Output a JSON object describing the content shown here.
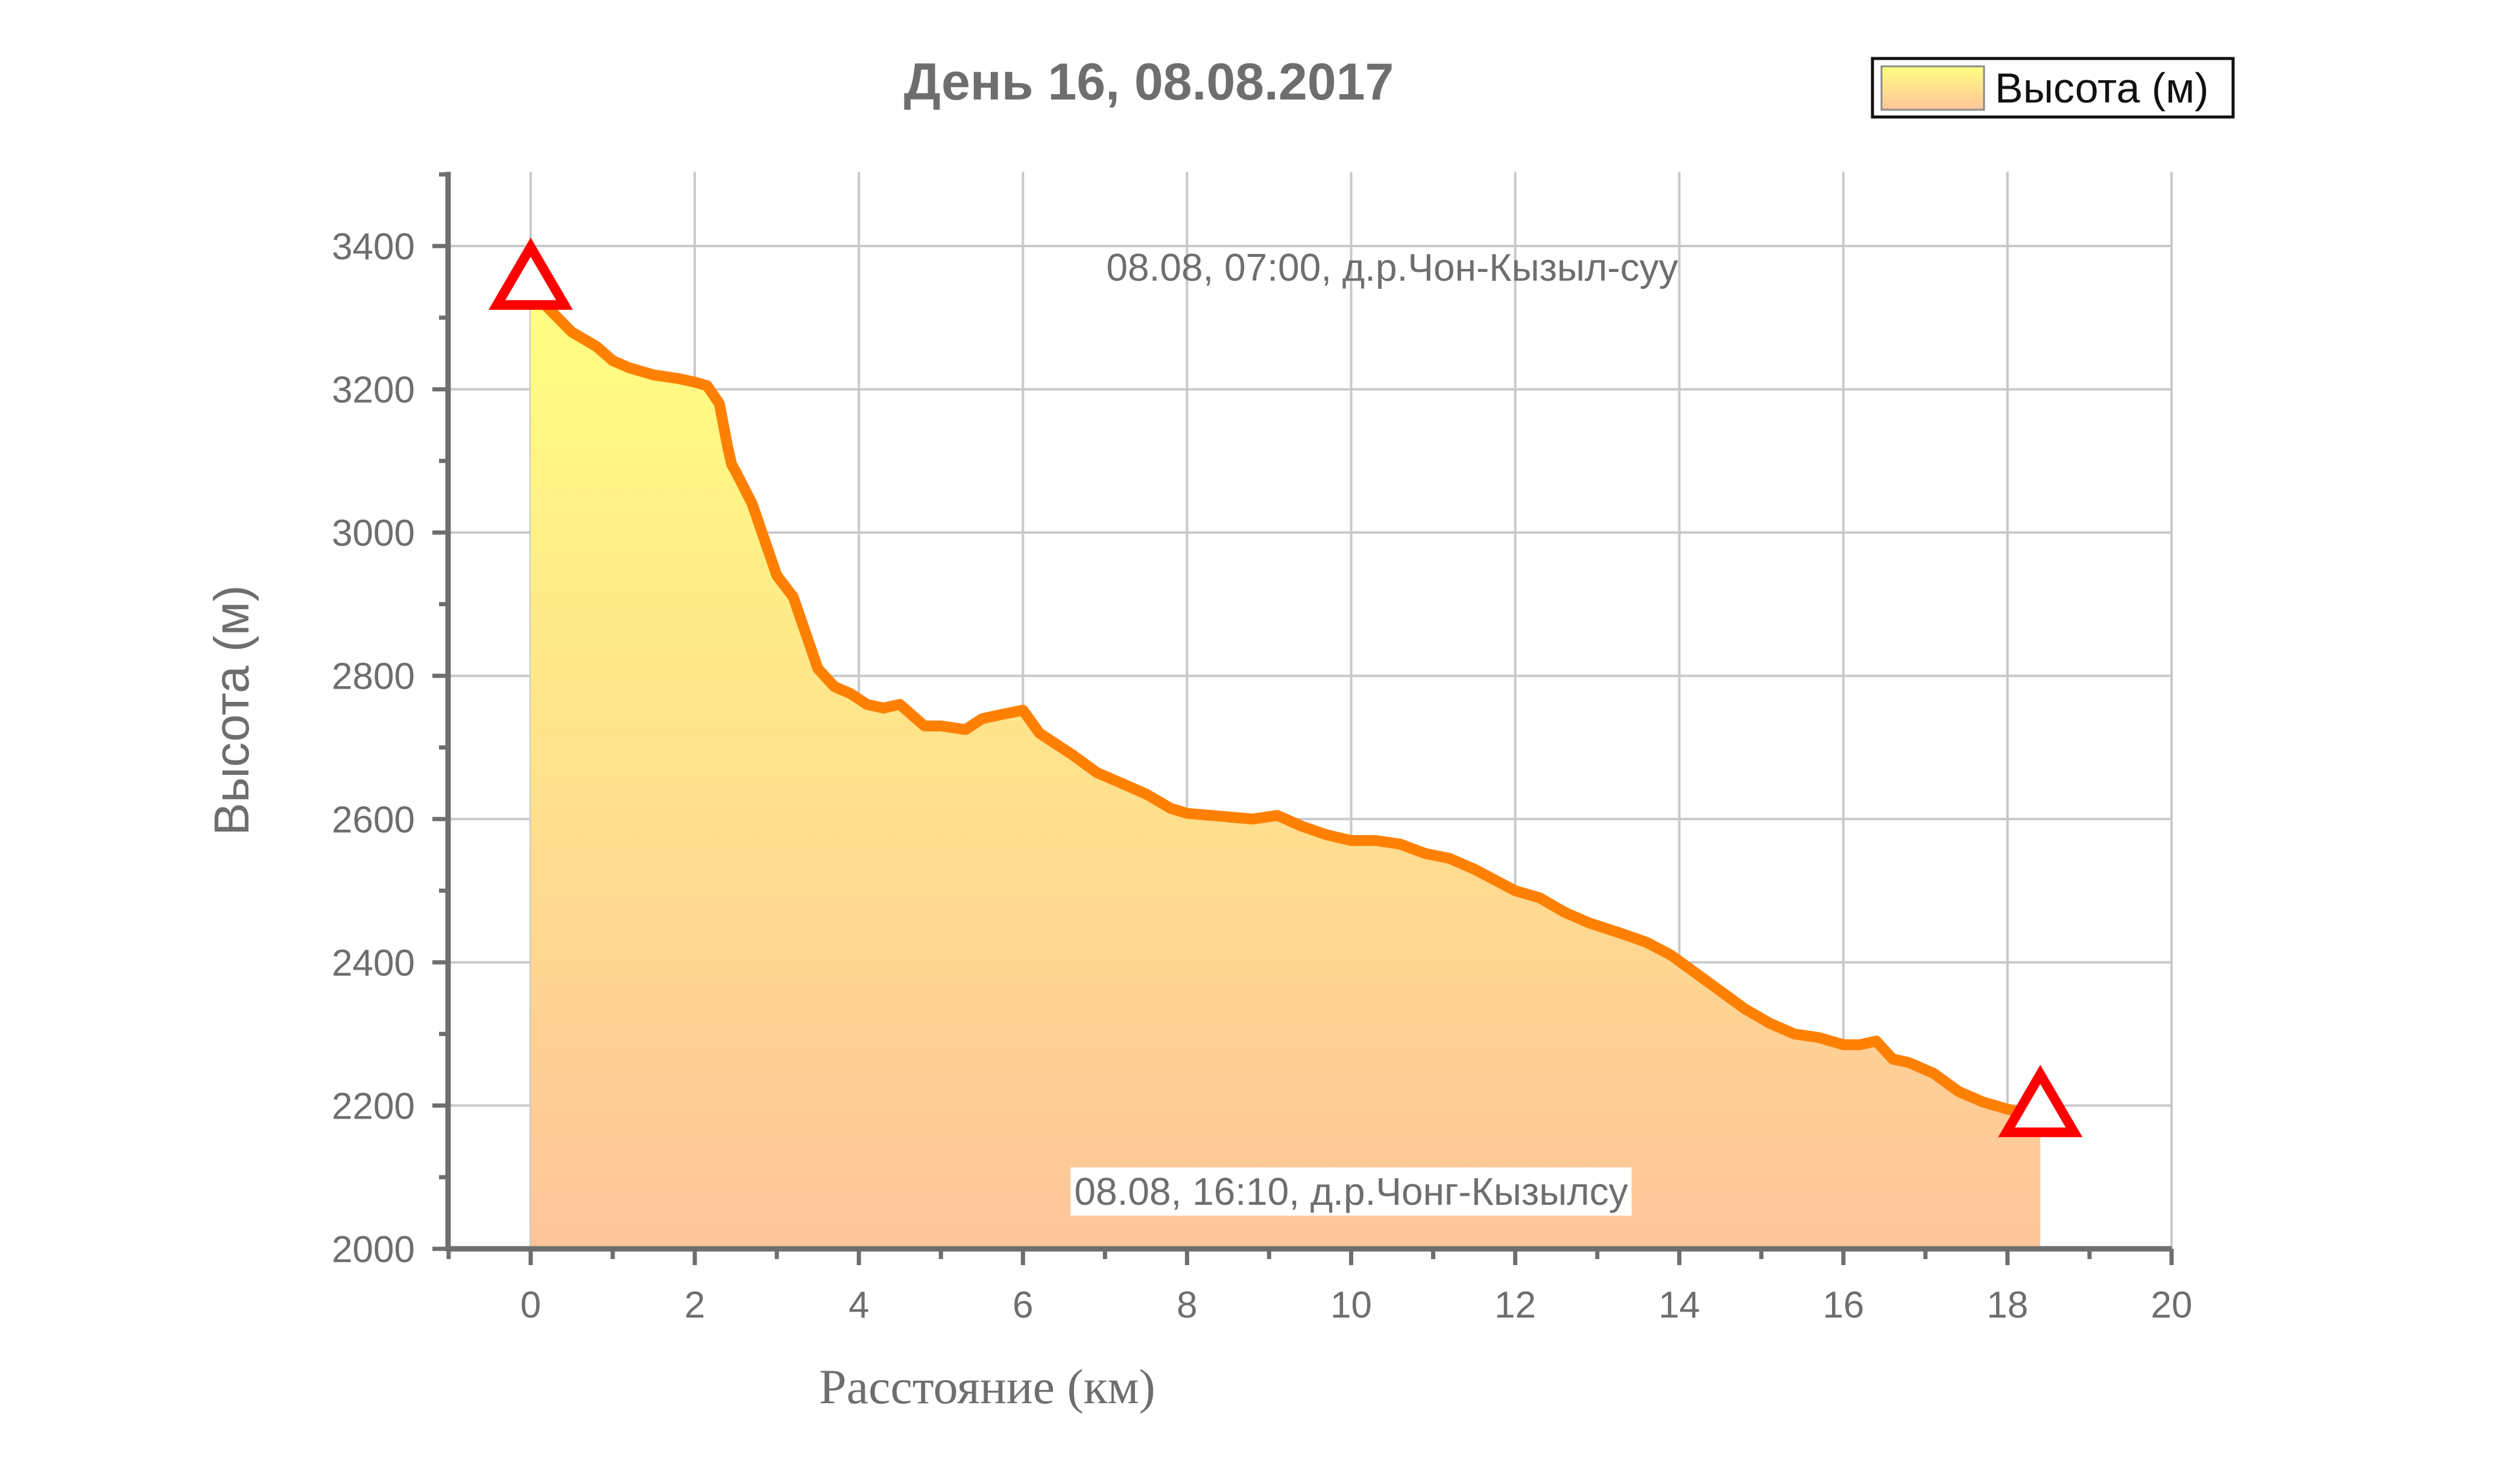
{
  "chart_data": {
    "type": "area",
    "title": "День 16, 08.08.2017",
    "xlabel": "Расстояние (км)",
    "ylabel": "Высота (м)",
    "xlim": [
      -1,
      20
    ],
    "ylim": [
      2000,
      3500
    ],
    "x_ticks": [
      0,
      2,
      4,
      6,
      8,
      10,
      12,
      14,
      16,
      18,
      20
    ],
    "y_ticks": [
      2000,
      2200,
      2400,
      2600,
      2800,
      3000,
      3200,
      3400
    ],
    "grid": true,
    "legend": {
      "position": "top-right",
      "entries": [
        "Высота (м)"
      ]
    },
    "series": [
      {
        "name": "Высота (м)",
        "color": "#ff8000",
        "fill_top_color": "#ffff80",
        "fill_bottom_color": "#ffc49a",
        "x": [
          0,
          0.2,
          0.5,
          0.8,
          1.0,
          1.2,
          1.5,
          1.8,
          2.0,
          2.15,
          2.3,
          2.4,
          2.45,
          2.5,
          2.7,
          2.85,
          3.0,
          3.2,
          3.35,
          3.5,
          3.7,
          3.9,
          4.1,
          4.3,
          4.5,
          4.8,
          5.0,
          5.3,
          5.5,
          5.7,
          6.0,
          6.2,
          6.4,
          6.6,
          6.9,
          7.2,
          7.5,
          7.8,
          8.0,
          8.3,
          8.6,
          8.8,
          9.1,
          9.4,
          9.7,
          10.0,
          10.3,
          10.6,
          10.9,
          11.2,
          11.5,
          11.8,
          12.0,
          12.3,
          12.6,
          12.9,
          13.3,
          13.6,
          13.9,
          14.2,
          14.5,
          14.8,
          15.1,
          15.4,
          15.7,
          16.0,
          16.2,
          16.4,
          16.6,
          16.8,
          17.1,
          17.4,
          17.7,
          18.0,
          18.2,
          18.4
        ],
        "y": [
          3335,
          3315,
          3280,
          3260,
          3240,
          3230,
          3220,
          3215,
          3210,
          3205,
          3180,
          3120,
          3095,
          3085,
          3040,
          2990,
          2940,
          2910,
          2860,
          2810,
          2785,
          2775,
          2760,
          2755,
          2760,
          2730,
          2730,
          2725,
          2740,
          2745,
          2752,
          2720,
          2705,
          2690,
          2665,
          2650,
          2635,
          2615,
          2608,
          2605,
          2602,
          2600,
          2605,
          2590,
          2578,
          2570,
          2570,
          2565,
          2552,
          2545,
          2530,
          2512,
          2500,
          2490,
          2470,
          2455,
          2440,
          2428,
          2410,
          2385,
          2360,
          2335,
          2315,
          2300,
          2295,
          2285,
          2285,
          2290,
          2265,
          2260,
          2245,
          2220,
          2205,
          2195,
          2190,
          2185
        ]
      }
    ],
    "annotations": [
      {
        "text": "08.08, 07:00, д.р.Чон-Кызыл-суу",
        "x": 10.5,
        "y": 3370
      },
      {
        "text": "08.08, 16:10, д.р.Чонг-Кызылсу",
        "x": 10.0,
        "y": 2080
      }
    ],
    "markers": [
      {
        "shape": "triangle",
        "color": "#ff0000",
        "x": 0,
        "y": 3350
      },
      {
        "shape": "triangle",
        "color": "#ff0000",
        "x": 18.4,
        "y": 2195
      }
    ]
  }
}
